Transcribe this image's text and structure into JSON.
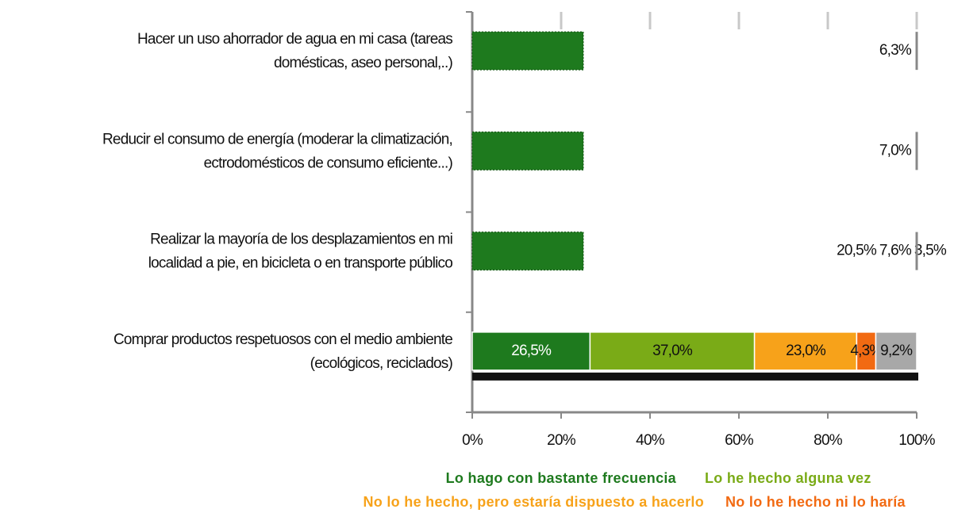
{
  "chart_data": {
    "type": "stacked-bar-horizontal",
    "categories": [
      [
        "Hacer un uso ahorrador de agua en mi casa (tareas",
        "domésticas, aseo personal,..)"
      ],
      [
        "Reducir el consumo de energía (moderar la climatización,",
        "ectrodomésticos de consumo eficiente...)"
      ],
      [
        "Realizar  la mayoría de los desplazamientos en mi",
        "localidad a pie, en bicicleta o en transporte público"
      ],
      [
        "Comprar productos respetuosos con el medio ambiente",
        "(ecológicos, reciclados)"
      ]
    ],
    "series": [
      {
        "name": "Lo hago con bastante frecuencia",
        "color": "#1e7a1e",
        "values": [
          25,
          25,
          25,
          26.5
        ],
        "value_labels": [
          null,
          null,
          null,
          "26,5%"
        ]
      },
      {
        "name": "Lo he hecho alguna vez",
        "color": "#7aab17",
        "values": [
          null,
          null,
          20.5,
          37.0
        ],
        "value_labels": [
          null,
          null,
          "20,5%",
          "37,0%"
        ]
      },
      {
        "name": "No lo he hecho, pero estaría dispuesto a hacerlo",
        "color": "#f7a21a",
        "values": [
          null,
          null,
          7.6,
          23.0
        ],
        "value_labels": [
          null,
          null,
          "7,6%",
          "23,0%"
        ]
      },
      {
        "name": "No lo he hecho ni lo haría",
        "color": "#f26a12",
        "values": [
          null,
          null,
          3.5,
          4.3
        ],
        "value_labels": [
          null,
          null,
          "3,5%",
          "4,3%"
        ]
      },
      {
        "color": "#a8a8a8",
        "values": [
          6.3,
          7.0,
          null,
          9.2
        ],
        "value_labels": [
          "6,3%",
          "7,0%",
          null,
          "9,2%"
        ]
      }
    ],
    "xlim": [
      0,
      100
    ],
    "xticks": [
      {
        "value": 0,
        "label": "0%"
      },
      {
        "value": 20,
        "label": "20%"
      },
      {
        "value": 40,
        "label": "40%"
      },
      {
        "value": 60,
        "label": "60%"
      },
      {
        "value": 80,
        "label": "80%"
      },
      {
        "value": 100,
        "label": "100%"
      }
    ]
  }
}
